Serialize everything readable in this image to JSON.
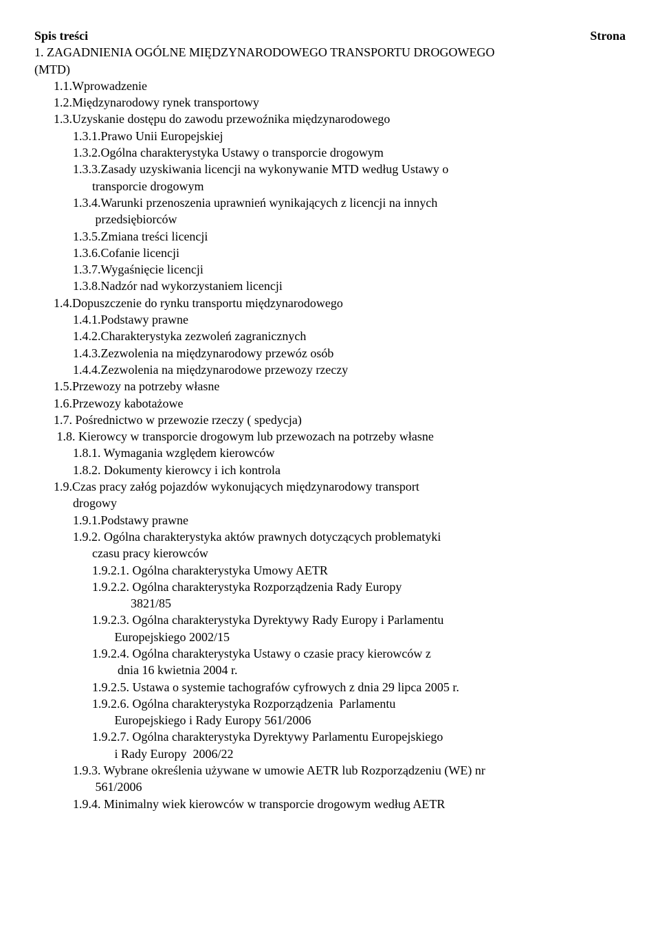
{
  "header": {
    "left": "Spis treści",
    "right": "Strona"
  },
  "lines": [
    {
      "indent": "l0",
      "text": "1. ZAGADNIENIA OGÓLNE MIĘDZYNARODOWEGO TRANSPORTU DROGOWEGO"
    },
    {
      "indent": "l0",
      "text": "(MTD)"
    },
    {
      "indent": "l1",
      "text": "1.1.Wprowadzenie"
    },
    {
      "indent": "l1",
      "text": "1.2.Międzynarodowy rynek transportowy"
    },
    {
      "indent": "l1",
      "text": "1.3.Uzyskanie dostępu do zawodu przewoźnika międzynarodowego"
    },
    {
      "indent": "l2",
      "text": "1.3.1.Prawo Unii Europejskiej"
    },
    {
      "indent": "l2",
      "text": "1.3.2.Ogólna charakterystyka Ustawy o transporcie drogowym"
    },
    {
      "indent": "l2",
      "text": "1.3.3.Zasady uzyskiwania licencji na wykonywanie MTD według Ustawy o"
    },
    {
      "indent": "l3",
      "text": "transporcie drogowym"
    },
    {
      "indent": "l2",
      "text": "1.3.4.Warunki przenoszenia uprawnień wynikających z licencji na innych"
    },
    {
      "indent": "l3",
      "text": " przedsiębiorców"
    },
    {
      "indent": "l2",
      "text": "1.3.5.Zmiana treści licencji"
    },
    {
      "indent": "l2",
      "text": "1.3.6.Cofanie licencji"
    },
    {
      "indent": "l2",
      "text": "1.3.7.Wygaśnięcie licencji"
    },
    {
      "indent": "l2",
      "text": "1.3.8.Nadzór nad wykorzystaniem licencji"
    },
    {
      "indent": "l1",
      "text": "1.4.Dopuszczenie do rynku transportu międzynarodowego"
    },
    {
      "indent": "l2",
      "text": "1.4.1.Podstawy prawne"
    },
    {
      "indent": "l2",
      "text": "1.4.2.Charakterystyka zezwoleń zagranicznych"
    },
    {
      "indent": "l2",
      "text": "1.4.3.Zezwolenia na międzynarodowy przewóz osób"
    },
    {
      "indent": "l2",
      "text": "1.4.4.Zezwolenia na międzynarodowe przewozy rzeczy"
    },
    {
      "indent": "l1",
      "text": "1.5.Przewozy na potrzeby własne"
    },
    {
      "indent": "l1",
      "text": "1.6.Przewozy kabotażowe"
    },
    {
      "indent": "l1",
      "text": "1.7. Pośrednictwo w przewozie rzeczy ( spedycja)"
    },
    {
      "indent": "l1",
      "text": " 1.8. Kierowcy w transporcie drogowym lub przewozach na potrzeby własne"
    },
    {
      "indent": "l2",
      "text": "1.8.1. Wymagania względem kierowców"
    },
    {
      "indent": "l2",
      "text": "1.8.2. Dokumenty kierowcy i ich kontrola"
    },
    {
      "indent": "l1",
      "text": "1.9.Czas pracy załóg pojazdów wykonujących międzynarodowy transport"
    },
    {
      "indent": "l2",
      "text": "drogowy"
    },
    {
      "indent": "l2",
      "text": "1.9.1.Podstawy prawne"
    },
    {
      "indent": "l2",
      "text": "1.9.2. Ogólna charakterystyka aktów prawnych dotyczących problematyki"
    },
    {
      "indent": "l3",
      "text": "czasu pracy kierowców"
    },
    {
      "indent": "l3",
      "text": "1.9.2.1. Ogólna charakterystyka Umowy AETR"
    },
    {
      "indent": "l3",
      "text": "1.9.2.2. Ogólna charakterystyka Rozporządzenia Rady Europy"
    },
    {
      "indent": "l5",
      "text": "3821/85"
    },
    {
      "indent": "l3",
      "text": "1.9.2.3. Ogólna charakterystyka Dyrektywy Rady Europy i Parlamentu"
    },
    {
      "indent": "l4",
      "text": " Europejskiego 2002/15"
    },
    {
      "indent": "l3",
      "text": "1.9.2.4. Ogólna charakterystyka Ustawy o czasie pracy kierowców z"
    },
    {
      "indent": "l4",
      "text": "  dnia 16 kwietnia 2004 r."
    },
    {
      "indent": "l3",
      "text": "1.9.2.5. Ustawa o systemie tachografów cyfrowych z dnia 29 lipca 2005 r."
    },
    {
      "indent": "l3",
      "text": "1.9.2.6. Ogólna charakterystyka Rozporządzenia  Parlamentu"
    },
    {
      "indent": "l4",
      "text": " Europejskiego i Rady Europy 561/2006"
    },
    {
      "indent": "l3",
      "text": "1.9.2.7. Ogólna charakterystyka Dyrektywy Parlamentu Europejskiego"
    },
    {
      "indent": "l4",
      "text": " i Rady Europy  2006/22"
    },
    {
      "indent": "l2",
      "text": "1.9.3. Wybrane określenia używane w umowie AETR lub Rozporządzeniu (WE) nr"
    },
    {
      "indent": "l3",
      "text": " 561/2006"
    },
    {
      "indent": "l2",
      "text": "1.9.4. Minimalny wiek kierowców w transporcie drogowym według AETR"
    }
  ]
}
